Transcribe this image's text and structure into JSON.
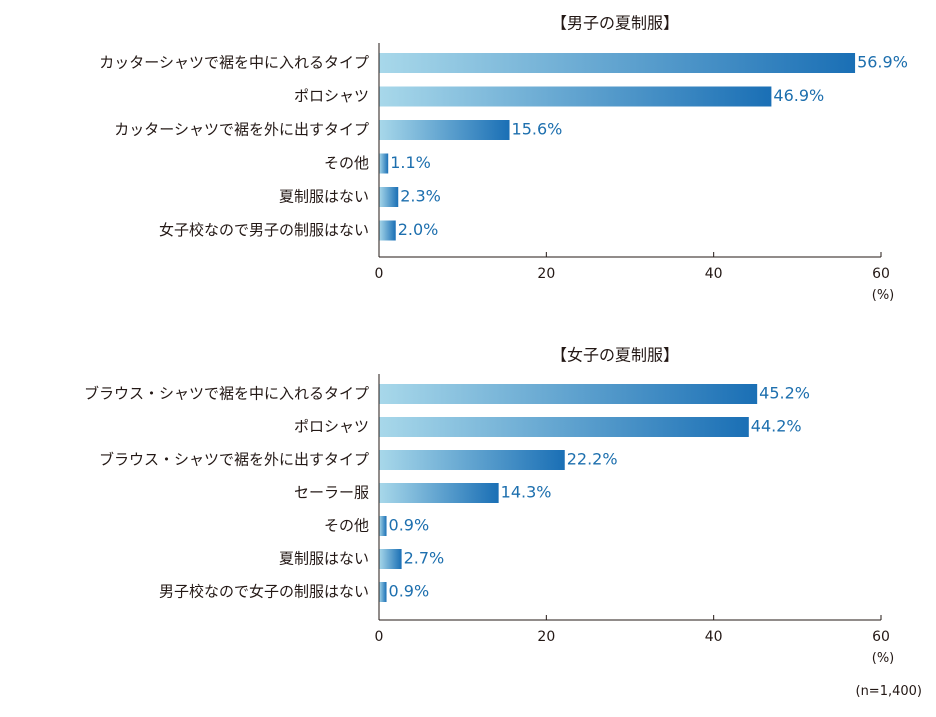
{
  "chart_data": [
    {
      "type": "bar",
      "orientation": "horizontal",
      "title": "【男子の夏制服】",
      "categories": [
        "カッターシャツで裾を中に入れるタイプ",
        "ポロシャツ",
        "カッターシャツで裾を外に出すタイプ",
        "その他",
        "夏制服はない",
        "女子校なので男子の制服はない"
      ],
      "values": [
        56.9,
        46.9,
        15.6,
        1.1,
        2.3,
        2.0
      ],
      "value_labels": [
        "56.9%",
        "46.9%",
        "15.6%",
        "1.1%",
        "2.3%",
        "2.0%"
      ],
      "xlim": [
        0,
        60
      ],
      "ticks": [
        "0",
        "20",
        "40",
        "60"
      ],
      "unit": "(%)",
      "grid": false,
      "legend": "none"
    },
    {
      "type": "bar",
      "orientation": "horizontal",
      "title": "【女子の夏制服】",
      "categories": [
        "ブラウス・シャツで裾を中に入れるタイプ",
        "ポロシャツ",
        "ブラウス・シャツで裾を外に出すタイプ",
        "セーラー服",
        "その他",
        "夏制服はない",
        "男子校なので女子の制服はない"
      ],
      "values": [
        45.2,
        44.2,
        22.2,
        14.3,
        0.9,
        2.7,
        0.9
      ],
      "value_labels": [
        "45.2%",
        "44.2%",
        "22.2%",
        "14.3%",
        "0.9%",
        "2.7%",
        "0.9%"
      ],
      "xlim": [
        0,
        60
      ],
      "ticks": [
        "0",
        "20",
        "40",
        "60"
      ],
      "unit": "(%)",
      "grid": false,
      "legend": "none"
    }
  ],
  "note": "(n=1,400)",
  "colors": {
    "bar_light": "#a8d8ea",
    "bar_dark": "#1a6fb5",
    "value_text": "#1d6fae",
    "axis": "#231815"
  }
}
